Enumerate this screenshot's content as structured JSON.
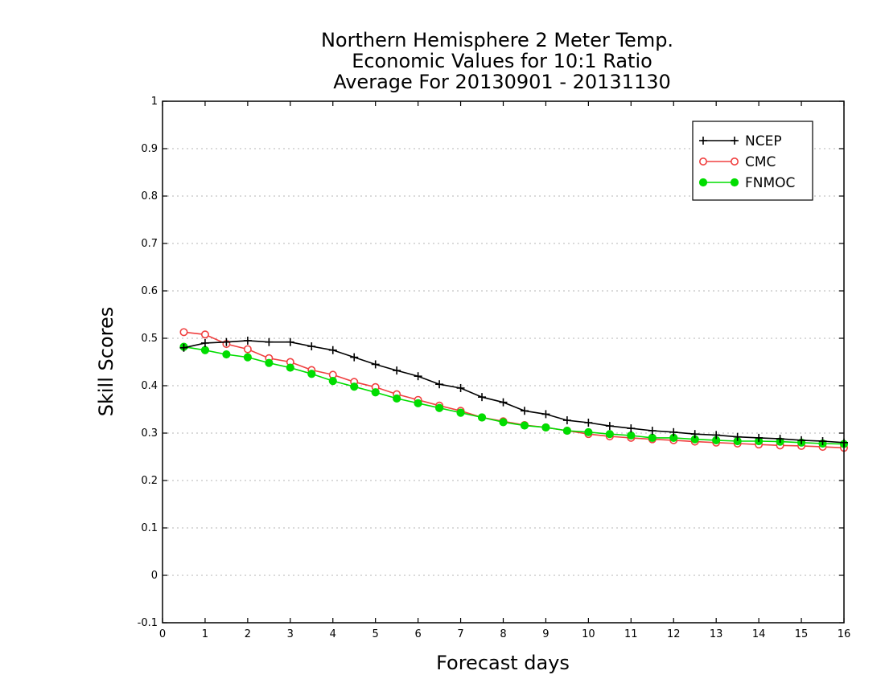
{
  "chart_data": {
    "type": "line",
    "title": "Northern Hemisphere 2 Meter Temp.",
    "subtitle": [
      "Economic Values for 10:1 Ratio",
      "Average For 20130901 - 20131130"
    ],
    "xlabel": "Forecast days",
    "ylabel": "Skill Scores",
    "xlim": [
      0,
      16
    ],
    "ylim": [
      -0.1,
      1
    ],
    "xticks": [
      0,
      1,
      2,
      3,
      4,
      5,
      6,
      7,
      8,
      9,
      10,
      11,
      12,
      13,
      14,
      15,
      16
    ],
    "xtick_labels": [
      "0",
      "1",
      "2",
      "3",
      "4",
      "5",
      "6",
      "7",
      "8",
      "9",
      "10",
      "11",
      "12",
      "13",
      "14",
      "15",
      "16"
    ],
    "yticks": [
      -0.1,
      0,
      0.1,
      0.2,
      0.3,
      0.4,
      0.5,
      0.6,
      0.7,
      0.8,
      0.9,
      1
    ],
    "ytick_labels": [
      "-0.1",
      "0",
      "0.1",
      "0.2",
      "0.3",
      "0.4",
      "0.5",
      "0.6",
      "0.7",
      "0.8",
      "0.9",
      "1"
    ],
    "grid": "horizontal-dotted",
    "legend_position": "top-right",
    "x": [
      0.5,
      1,
      1.5,
      2,
      2.5,
      3,
      3.5,
      4,
      4.5,
      5,
      5.5,
      6,
      6.5,
      7,
      7.5,
      8,
      8.5,
      9,
      9.5,
      10,
      10.5,
      11,
      11.5,
      12,
      12.5,
      13,
      13.5,
      14,
      14.5,
      15,
      15.5,
      16
    ],
    "series": [
      {
        "name": "NCEP",
        "color": "#000000",
        "marker": "plus",
        "values": [
          0.48,
          0.49,
          0.492,
          0.495,
          0.492,
          0.492,
          0.483,
          0.475,
          0.46,
          0.445,
          0.432,
          0.42,
          0.403,
          0.395,
          0.376,
          0.365,
          0.347,
          0.34,
          0.327,
          0.322,
          0.315,
          0.31,
          0.305,
          0.302,
          0.298,
          0.296,
          0.292,
          0.29,
          0.288,
          0.285,
          0.283,
          0.28
        ]
      },
      {
        "name": "CMC",
        "color": "#f04040",
        "marker": "open-circle",
        "values": [
          0.513,
          0.508,
          0.488,
          0.477,
          0.458,
          0.45,
          0.433,
          0.423,
          0.408,
          0.397,
          0.382,
          0.37,
          0.358,
          0.347,
          0.333,
          0.325,
          0.317,
          0.312,
          0.305,
          0.298,
          0.293,
          0.29,
          0.287,
          0.285,
          0.282,
          0.28,
          0.278,
          0.276,
          0.274,
          0.273,
          0.271,
          0.269
        ]
      },
      {
        "name": "FNMOC",
        "color": "#00dd00",
        "marker": "filled-circle",
        "values": [
          0.482,
          0.475,
          0.466,
          0.46,
          0.448,
          0.438,
          0.425,
          0.41,
          0.398,
          0.386,
          0.373,
          0.363,
          0.353,
          0.343,
          0.333,
          0.323,
          0.316,
          0.312,
          0.305,
          0.302,
          0.298,
          0.295,
          0.29,
          0.29,
          0.287,
          0.285,
          0.283,
          0.283,
          0.282,
          0.28,
          0.278,
          0.277
        ]
      }
    ]
  }
}
